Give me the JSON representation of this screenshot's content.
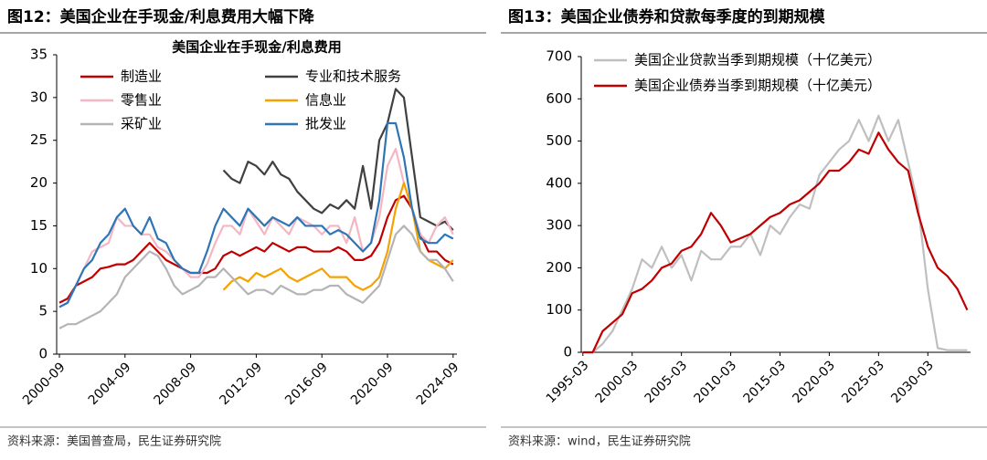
{
  "chart_data": [
    {
      "type": "line",
      "title": "图12：美国企业在手现金/利息费用大幅下降",
      "subtitle": "美国企业在手现金/利息费用",
      "source": "资料来源：美国普查局，民生证券研究院",
      "x": [
        2000.667,
        2001.167,
        2001.667,
        2002.167,
        2002.667,
        2003.167,
        2003.667,
        2004.167,
        2004.667,
        2005.167,
        2005.667,
        2006.167,
        2006.667,
        2007.167,
        2007.667,
        2008.167,
        2008.667,
        2009.167,
        2009.667,
        2010.167,
        2010.667,
        2011.167,
        2011.667,
        2012.167,
        2012.667,
        2013.167,
        2013.667,
        2014.167,
        2014.667,
        2015.167,
        2015.667,
        2016.167,
        2016.667,
        2017.167,
        2017.667,
        2018.167,
        2018.667,
        2019.167,
        2019.667,
        2020.167,
        2020.667,
        2021.167,
        2021.667,
        2022.167,
        2022.667,
        2023.167,
        2023.667,
        2024.167,
        2024.667
      ],
      "xlim": [
        2000.5,
        2024.9
      ],
      "xticks": [
        {
          "value": 2000.667,
          "label": "2000-09"
        },
        {
          "value": 2004.667,
          "label": "2004-09"
        },
        {
          "value": 2008.667,
          "label": "2008-09"
        },
        {
          "value": 2012.667,
          "label": "2012-09"
        },
        {
          "value": 2016.667,
          "label": "2016-09"
        },
        {
          "value": 2020.667,
          "label": "2020-09"
        },
        {
          "value": 2024.667,
          "label": "2024-09"
        }
      ],
      "ylim": [
        0,
        35
      ],
      "yticks": [
        0,
        5,
        10,
        15,
        20,
        25,
        30,
        35
      ],
      "legend": "upper left",
      "series": [
        {
          "name": "制造业",
          "color": "#c00000",
          "values": [
            6,
            6.5,
            8,
            8.5,
            9,
            10,
            10.2,
            10.5,
            10.5,
            11,
            12,
            13,
            12,
            11,
            10.5,
            10,
            9.5,
            9.5,
            9.5,
            10,
            11.5,
            12,
            11.5,
            12,
            12.5,
            12,
            13,
            12.5,
            12,
            12.5,
            12.5,
            12,
            12,
            12,
            12.5,
            12,
            11,
            11,
            11.5,
            13,
            16,
            18,
            18.5,
            17,
            14,
            12,
            12,
            11,
            10.5
          ]
        },
        {
          "name": "专业和技术服务",
          "color": "#404040",
          "values": [
            null,
            null,
            null,
            null,
            null,
            null,
            null,
            null,
            null,
            null,
            null,
            null,
            null,
            null,
            null,
            null,
            null,
            null,
            null,
            null,
            21.5,
            20.5,
            20,
            22.5,
            22,
            21,
            22.5,
            21,
            20.5,
            19,
            18,
            17,
            16.5,
            17.5,
            17,
            18,
            17,
            22,
            17,
            25,
            27,
            31,
            30,
            23,
            16,
            15.5,
            15,
            15.5,
            14.5
          ]
        },
        {
          "name": "零售业",
          "color": "#f4b6c2",
          "values": [
            5.5,
            6,
            8,
            10,
            12,
            12.5,
            13,
            16,
            15,
            15,
            14,
            14,
            12.5,
            12,
            11,
            10,
            9,
            9,
            10.5,
            13,
            15,
            15,
            14,
            17,
            15.5,
            14,
            16,
            15,
            14,
            16,
            15.5,
            15,
            14,
            15,
            15,
            13,
            16,
            12,
            13,
            16,
            22,
            24,
            20,
            17,
            14,
            13,
            15,
            16,
            14
          ]
        },
        {
          "name": "信息业",
          "color": "#f5a100",
          "values": [
            null,
            null,
            null,
            null,
            null,
            null,
            null,
            null,
            null,
            null,
            null,
            null,
            null,
            null,
            null,
            null,
            null,
            null,
            null,
            null,
            7.5,
            8.5,
            9,
            8.5,
            9.5,
            9,
            9.5,
            10,
            9,
            8.5,
            9,
            9.5,
            10,
            9,
            9,
            9,
            8,
            7.5,
            8,
            9,
            12,
            17,
            20,
            17,
            12,
            11,
            10.5,
            10,
            11
          ]
        },
        {
          "name": "采矿业",
          "color": "#b4b4b4",
          "values": [
            3,
            3.5,
            3.5,
            4,
            4.5,
            5,
            6,
            7,
            9,
            10,
            11,
            12,
            11.5,
            10,
            8,
            7,
            7.5,
            8,
            9,
            9,
            10,
            9,
            8,
            7,
            7.5,
            7.5,
            7,
            8,
            7.5,
            7,
            7,
            7.5,
            7.5,
            8,
            8,
            7,
            6.5,
            6,
            7,
            8,
            11,
            14,
            15,
            14,
            12,
            11,
            11,
            10,
            8.5
          ]
        },
        {
          "name": "批发业",
          "color": "#2e75b6",
          "values": [
            5.5,
            6,
            8,
            10,
            11,
            13,
            14,
            16,
            17,
            15,
            14,
            16,
            13.5,
            13,
            11,
            10,
            9.5,
            9.5,
            12,
            15,
            17,
            16,
            15,
            17,
            16,
            15,
            16,
            15.5,
            15,
            16,
            15,
            15,
            15,
            14,
            14.5,
            14,
            13,
            12,
            13,
            18,
            27,
            27,
            23,
            17,
            13.5,
            13,
            13,
            14,
            13.5
          ]
        }
      ]
    },
    {
      "type": "line",
      "title": "图13：美国企业债券和贷款每季度的到期规模",
      "source": "资料来源：wind，民生证券研究院",
      "x": [
        1995.167,
        1996.167,
        1997.167,
        1998.167,
        1999.167,
        2000.167,
        2001.167,
        2002.167,
        2003.167,
        2004.167,
        2005.167,
        2006.167,
        2007.167,
        2008.167,
        2009.167,
        2010.167,
        2011.167,
        2012.167,
        2013.167,
        2014.167,
        2015.167,
        2016.167,
        2017.167,
        2018.167,
        2019.167,
        2020.167,
        2021.167,
        2022.167,
        2023.167,
        2024.167,
        2025.167,
        2026.167,
        2027.167,
        2028.167,
        2029.167,
        2030.167,
        2031.167,
        2032.167,
        2033.167,
        2034.167
      ],
      "xlim": [
        1995,
        2034.5
      ],
      "xticks": [
        {
          "value": 1995.167,
          "label": "1995-03"
        },
        {
          "value": 2000.167,
          "label": "2000-03"
        },
        {
          "value": 2005.167,
          "label": "2005-03"
        },
        {
          "value": 2010.167,
          "label": "2010-03"
        },
        {
          "value": 2015.167,
          "label": "2015-03"
        },
        {
          "value": 2020.167,
          "label": "2020-03"
        },
        {
          "value": 2025.167,
          "label": "2025-03"
        },
        {
          "value": 2030.167,
          "label": "2030-03"
        }
      ],
      "ylim": [
        0,
        700
      ],
      "yticks": [
        0,
        100,
        200,
        300,
        400,
        500,
        600,
        700
      ],
      "legend": "upper left",
      "series": [
        {
          "name": "美国企业贷款当季到期规模（十亿美元）",
          "color": "#bfbfbf",
          "values": [
            0,
            0,
            20,
            50,
            100,
            150,
            220,
            200,
            250,
            200,
            230,
            170,
            240,
            220,
            220,
            250,
            250,
            280,
            230,
            300,
            280,
            320,
            350,
            340,
            420,
            450,
            480,
            500,
            550,
            500,
            560,
            500,
            550,
            450,
            350,
            150,
            10,
            5,
            5,
            5
          ]
        },
        {
          "name": "美国企业债券当季到期规模（十亿美元）",
          "color": "#c00000",
          "values": [
            0,
            0,
            50,
            70,
            90,
            140,
            150,
            170,
            200,
            210,
            240,
            250,
            280,
            330,
            300,
            260,
            270,
            280,
            300,
            320,
            330,
            350,
            360,
            380,
            400,
            430,
            430,
            450,
            480,
            470,
            520,
            480,
            450,
            430,
            330,
            250,
            200,
            180,
            150,
            100
          ]
        }
      ]
    }
  ]
}
